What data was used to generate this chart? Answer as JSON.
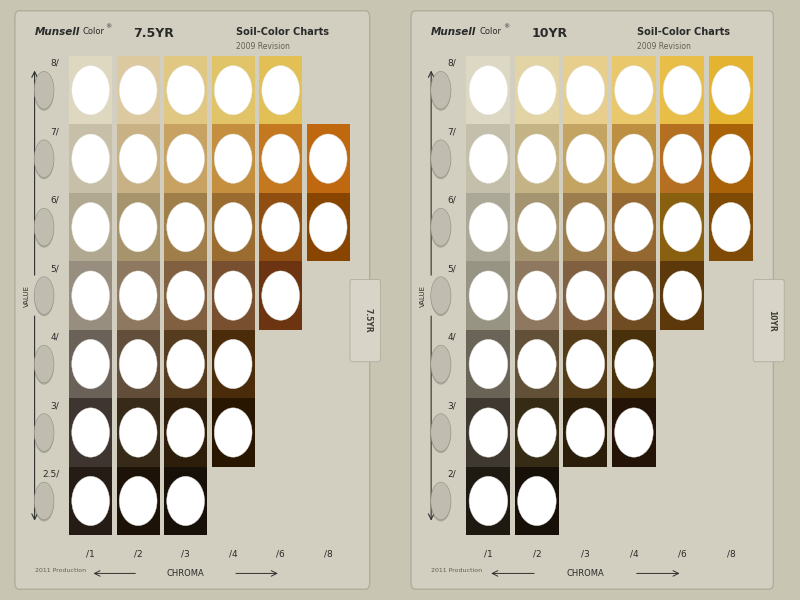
{
  "bg_color": "#c8c5b2",
  "card_bg": "#d2cfc0",
  "card_edge": "#b0ad9e",
  "tab_bg": "#d8d5c8",
  "chart1": {
    "title_hue": "7.5YR",
    "tab_label": "7.5YR",
    "value_labels": [
      "8/",
      "7/",
      "6/",
      "5/",
      "4/",
      "3/",
      "2.5/"
    ],
    "chroma_labels": [
      "/1",
      "/2",
      "/3",
      "/4",
      "/6",
      "/8"
    ],
    "year": "2011 Production",
    "colors": {
      "8": [
        "#dfd8c0",
        "#ddc9a0",
        "#e0c882",
        "#e2c468",
        "#e2c055",
        null
      ],
      "7": [
        "#c8bfa8",
        "#c8b285",
        "#c8a262",
        "#c49040",
        "#c47820",
        "#c06810"
      ],
      "6": [
        "#b0a890",
        "#a8946c",
        "#a07e4a",
        "#9a6c30",
        "#904e10",
        "#884500"
      ],
      "5": [
        "#988e80",
        "#8e7860",
        "#806040",
        "#785030",
        "#6c3410",
        null
      ],
      "4": [
        "#6a6258",
        "#624e3a",
        "#553c1e",
        "#4a2c0a",
        null,
        null
      ],
      "3": [
        "#3e3530",
        "#382a18",
        "#2c1e0a",
        "#281600",
        null,
        null
      ],
      "2.5": [
        "#251d15",
        "#1c1208",
        "#161008",
        null,
        null,
        null
      ]
    }
  },
  "chart2": {
    "title_hue": "10YR",
    "tab_label": "10YR",
    "value_labels": [
      "8/",
      "7/",
      "6/",
      "5/",
      "4/",
      "3/",
      "2/"
    ],
    "chroma_labels": [
      "/1",
      "/2",
      "/3",
      "/4",
      "/6",
      "/8"
    ],
    "year": "2011 Production",
    "colors": {
      "8": [
        "#dcd8c4",
        "#e2d4a4",
        "#e8ce8c",
        "#e8c86a",
        "#e8be48",
        "#e4b430"
      ],
      "7": [
        "#c4bfaa",
        "#c4b485",
        "#c4a462",
        "#bc9040",
        "#b47020",
        "#aa6208"
      ],
      "6": [
        "#aca898",
        "#a49470",
        "#9c7e4e",
        "#946830",
        "#886010",
        "#7e4a05"
      ],
      "5": [
        "#989484",
        "#8e7860",
        "#806040",
        "#704c22",
        "#5c380a",
        null
      ],
      "4": [
        "#6a6458",
        "#625038",
        "#543c18",
        "#48300a",
        null,
        null
      ],
      "3": [
        "#3e3830",
        "#362c15",
        "#2a1e0a",
        "#241408",
        null,
        null
      ],
      "2": [
        "#1e1a12",
        "#161008",
        null,
        null,
        null,
        null
      ]
    }
  }
}
